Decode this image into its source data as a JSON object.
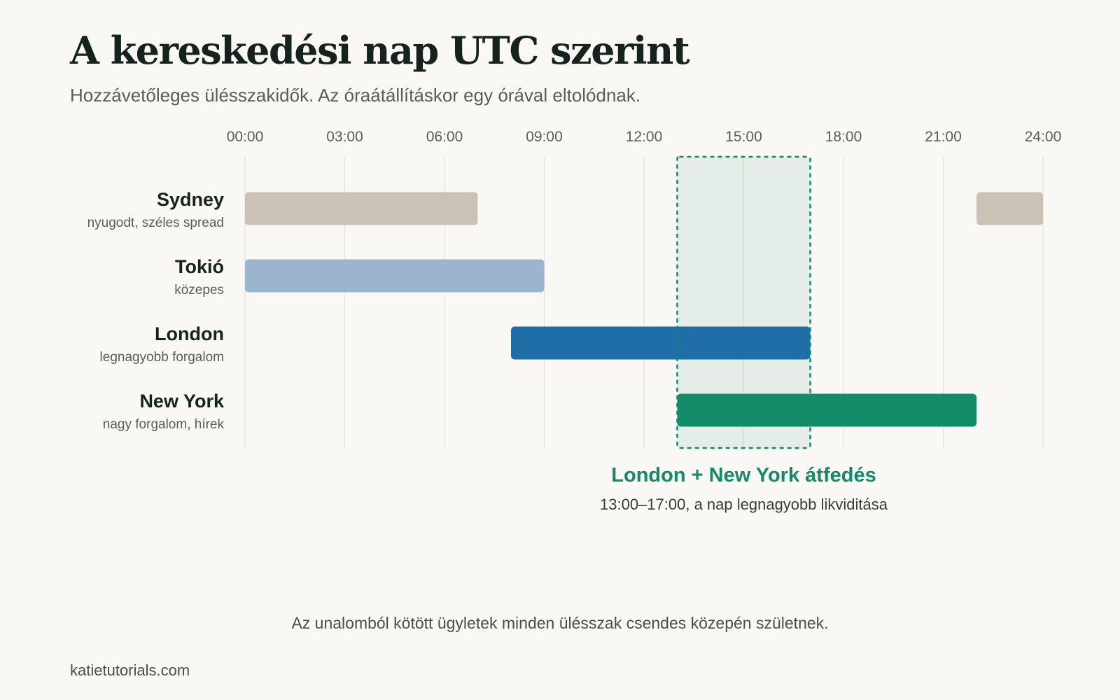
{
  "title": "A kereskedési nap UTC szerint",
  "subtitle": "Hozzávetőleges ülésszakidők. Az óraátállításkor egy órával eltolódnak.",
  "chart_data": {
    "type": "bar",
    "orientation": "horizontal-range",
    "x_unit": "hour (UTC)",
    "xlim": [
      0,
      24
    ],
    "x_ticks": [
      "00:00",
      "03:00",
      "06:00",
      "09:00",
      "12:00",
      "15:00",
      "18:00",
      "21:00",
      "24:00"
    ],
    "grid": true,
    "sessions": [
      {
        "name": "Sydney",
        "note": "nyugodt, széles spread",
        "color": "#cac2b5",
        "segments": [
          [
            0,
            7
          ],
          [
            22,
            24
          ]
        ]
      },
      {
        "name": "Tokió",
        "note": "közepes",
        "color": "#9bb5cd",
        "segments": [
          [
            0,
            9
          ]
        ]
      },
      {
        "name": "London",
        "note": "legnagyobb forgalom",
        "color": "#1f6ea8",
        "segments": [
          [
            8,
            17
          ]
        ]
      },
      {
        "name": "New York",
        "note": "nagy forgalom, hírek",
        "color": "#138a68",
        "segments": [
          [
            13,
            22
          ]
        ]
      }
    ],
    "overlap": {
      "start": 13,
      "end": 17,
      "label": "London + New York átfedés",
      "sublabel": "13:00–17:00, a nap legnagyobb likviditása",
      "color": "#138a68"
    }
  },
  "footnote": "Az unalomból kötött ügyletek minden ülésszak csendes közepén születnek.",
  "credit": "katietutorials.com"
}
